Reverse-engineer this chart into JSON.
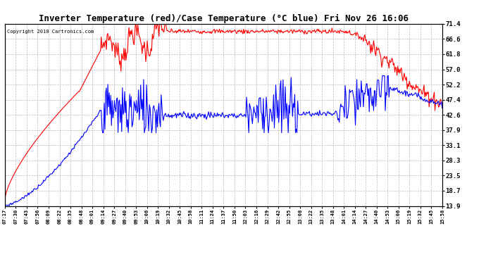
{
  "title": "Inverter Temperature (red)/Case Temperature (°C blue) Fri Nov 26 16:06",
  "copyright": "Copyright 2010 Cartronics.com",
  "ylabel_right_ticks": [
    13.9,
    18.7,
    23.5,
    28.3,
    33.1,
    37.9,
    42.6,
    47.4,
    52.2,
    57.0,
    61.8,
    66.6,
    71.4
  ],
  "ymin": 13.9,
  "ymax": 71.4,
  "background_color": "#ffffff",
  "plot_bg_color": "#ffffff",
  "grid_color": "#bbbbbb",
  "red_color": "#ff0000",
  "blue_color": "#0000ff",
  "x_labels": [
    "07:17",
    "07:30",
    "07:43",
    "07:56",
    "08:09",
    "08:22",
    "08:35",
    "08:48",
    "09:01",
    "09:14",
    "09:27",
    "09:40",
    "09:53",
    "10:06",
    "10:19",
    "10:32",
    "10:45",
    "10:58",
    "11:11",
    "11:24",
    "11:37",
    "11:50",
    "12:03",
    "12:16",
    "12:29",
    "12:42",
    "12:55",
    "13:08",
    "13:22",
    "13:35",
    "13:48",
    "14:01",
    "14:14",
    "14:27",
    "14:40",
    "14:53",
    "15:06",
    "15:19",
    "15:32",
    "15:45",
    "15:58"
  ]
}
